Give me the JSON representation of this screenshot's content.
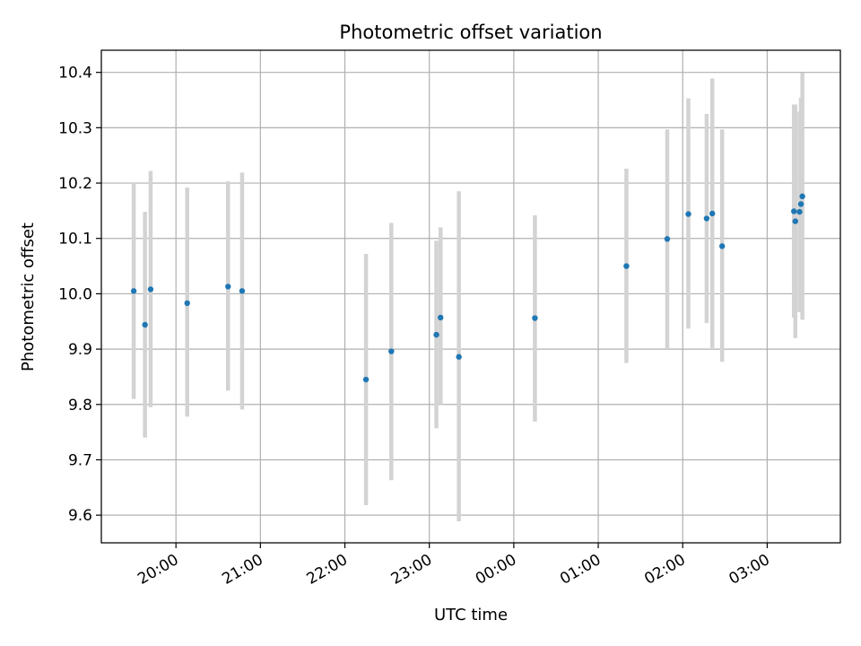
{
  "chart_data": {
    "type": "scatter",
    "title": "Photometric offset variation",
    "xlabel": "UTC time",
    "ylabel": "Photometric offset",
    "x_kind": "time",
    "x_start": "19:07",
    "x_end": "03:52",
    "ylim": [
      9.55,
      10.44
    ],
    "x_ticks": [
      {
        "time": "20:00",
        "label": "20:00"
      },
      {
        "time": "21:00",
        "label": "21:00"
      },
      {
        "time": "22:00",
        "label": "22:00"
      },
      {
        "time": "23:00",
        "label": "23:00"
      },
      {
        "time": "00:00",
        "label": "00:00"
      },
      {
        "time": "01:00",
        "label": "01:00"
      },
      {
        "time": "02:00",
        "label": "02:00"
      },
      {
        "time": "03:00",
        "label": "03:00"
      }
    ],
    "y_ticks": [
      9.6,
      9.7,
      9.8,
      9.9,
      10.0,
      10.1,
      10.2,
      10.3,
      10.4
    ],
    "y_tick_labels": [
      "9.6",
      "9.7",
      "9.8",
      "9.9",
      "10.0",
      "10.1",
      "10.2",
      "10.3",
      "10.4"
    ],
    "grid": true,
    "points": [
      {
        "time": "19:30",
        "y": 10.005,
        "low": 9.81,
        "high": 10.2
      },
      {
        "time": "19:38",
        "y": 9.944,
        "low": 9.74,
        "high": 10.148
      },
      {
        "time": "19:42",
        "y": 10.008,
        "low": 9.795,
        "high": 10.222
      },
      {
        "time": "20:08",
        "y": 9.983,
        "low": 9.778,
        "high": 10.192
      },
      {
        "time": "20:37",
        "y": 10.013,
        "low": 9.825,
        "high": 10.203
      },
      {
        "time": "20:47",
        "y": 10.005,
        "low": 9.791,
        "high": 10.219
      },
      {
        "time": "22:15",
        "y": 9.845,
        "low": 9.618,
        "high": 10.072
      },
      {
        "time": "22:33",
        "y": 9.896,
        "low": 9.663,
        "high": 10.128
      },
      {
        "time": "23:05",
        "y": 9.926,
        "low": 9.757,
        "high": 10.096
      },
      {
        "time": "23:08",
        "y": 9.957,
        "low": 9.8,
        "high": 10.12
      },
      {
        "time": "23:21",
        "y": 9.886,
        "low": 9.589,
        "high": 10.185
      },
      {
        "time": "00:15",
        "y": 9.956,
        "low": 9.769,
        "high": 10.142
      },
      {
        "time": "01:20",
        "y": 10.05,
        "low": 9.875,
        "high": 10.226
      },
      {
        "time": "01:49",
        "y": 10.099,
        "low": 9.9,
        "high": 10.297
      },
      {
        "time": "02:04",
        "y": 10.144,
        "low": 9.937,
        "high": 10.353
      },
      {
        "time": "02:17",
        "y": 10.136,
        "low": 9.947,
        "high": 10.325
      },
      {
        "time": "02:21",
        "y": 10.145,
        "low": 9.902,
        "high": 10.389
      },
      {
        "time": "02:28",
        "y": 10.086,
        "low": 9.877,
        "high": 10.297
      },
      {
        "time": "03:19",
        "y": 10.149,
        "low": 9.957,
        "high": 10.342
      },
      {
        "time": "03:20",
        "y": 10.131,
        "low": 9.92,
        "high": 10.342
      },
      {
        "time": "03:23",
        "y": 10.148,
        "low": 9.967,
        "high": 10.329
      },
      {
        "time": "03:24",
        "y": 10.162,
        "low": 9.971,
        "high": 10.354
      },
      {
        "time": "03:25",
        "y": 10.176,
        "low": 9.953,
        "high": 10.399
      }
    ],
    "colors": {
      "point": "#1f77b4",
      "errorbar": "#d3d3d3",
      "grid": "#b0b0b0",
      "axes": "#000000"
    }
  }
}
